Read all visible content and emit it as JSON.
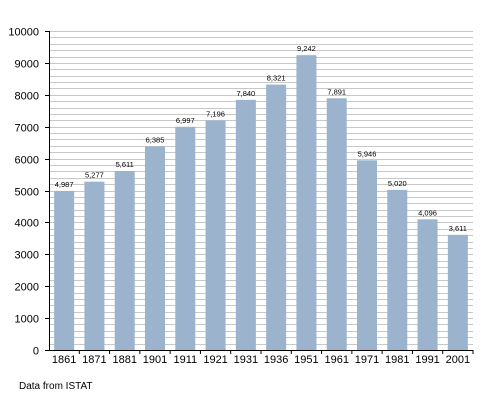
{
  "chart_data": {
    "type": "bar",
    "categories": [
      "1861",
      "1871",
      "1881",
      "1901",
      "1911",
      "1921",
      "1931",
      "1936",
      "1951",
      "1961",
      "1971",
      "1981",
      "1991",
      "2001"
    ],
    "values": [
      4987,
      5277,
      5611,
      6385,
      6997,
      7196,
      7840,
      8321,
      9242,
      7891,
      5946,
      5020,
      4096,
      3611
    ],
    "data_labels": [
      "4,987",
      "5,277",
      "5,611",
      "6,385",
      "6,997",
      "7,196",
      "7,840",
      "8,321",
      "9,242",
      "7,891",
      "5,946",
      "5,020",
      "4,096",
      "3,611"
    ],
    "y_ticks": [
      "0",
      "1000",
      "2000",
      "3000",
      "4000",
      "5000",
      "6000",
      "7000",
      "8000",
      "9000",
      "10000"
    ],
    "ylim": [
      0,
      10000
    ],
    "minor_grid_step": 200,
    "grid": true,
    "colors": {
      "bar": "#9bb3cc",
      "grid": "#c8c8c8",
      "axis": "#000000"
    }
  },
  "source_note": "Data from ISTAT"
}
